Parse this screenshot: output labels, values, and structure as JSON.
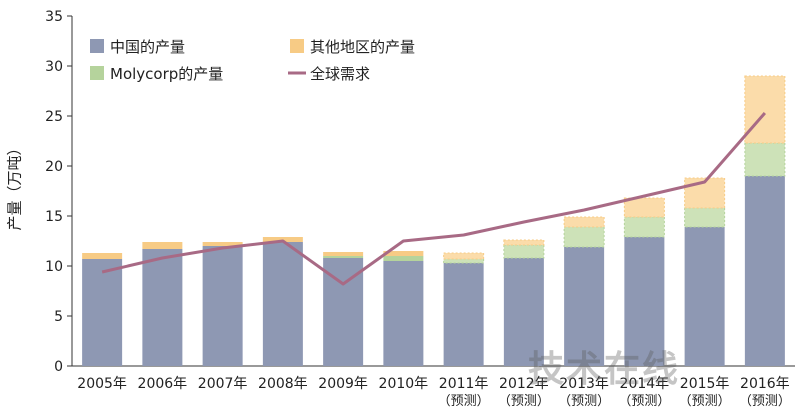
{
  "chart_data": {
    "type": "bar",
    "subtype": "stacked-bar-with-line",
    "title": "",
    "ylabel": "产量（万吨）",
    "xlabel": "",
    "ylim": [
      0,
      35
    ],
    "yticks": [
      "0",
      "5",
      "10",
      "15",
      "20",
      "25",
      "30",
      "35"
    ],
    "categories": [
      {
        "line1": "2005年",
        "line2": ""
      },
      {
        "line1": "2006年",
        "line2": ""
      },
      {
        "line1": "2007年",
        "line2": ""
      },
      {
        "line1": "2008年",
        "line2": ""
      },
      {
        "line1": "2009年",
        "line2": ""
      },
      {
        "line1": "2010年",
        "line2": ""
      },
      {
        "line1": "2011年",
        "line2": "（预测）"
      },
      {
        "line1": "2012年",
        "line2": "（预测）"
      },
      {
        "line1": "2013年",
        "line2": "（预测）"
      },
      {
        "line1": "2014年",
        "line2": "（预测）"
      },
      {
        "line1": "2015年",
        "line2": "（预测）"
      },
      {
        "line1": "2016年",
        "line2": "（预测）"
      }
    ],
    "forecast_from_index": 6,
    "series": [
      {
        "name": "中国的产量",
        "kind": "bar",
        "color": "#8e98b3",
        "forecast_color": "#8e98b3",
        "values": [
          10.7,
          11.7,
          12.0,
          12.4,
          10.8,
          10.5,
          10.3,
          10.8,
          11.9,
          12.9,
          13.9,
          19.0
        ]
      },
      {
        "name": "Molycorp的产量",
        "kind": "bar",
        "color": "#b5d39c",
        "forecast_color": "#cde2b8",
        "values": [
          0,
          0,
          0,
          0,
          0.2,
          0.5,
          0.4,
          1.3,
          2.0,
          2.0,
          1.9,
          3.3
        ]
      },
      {
        "name": "其他地区的产量",
        "kind": "bar",
        "color": "#f7cb85",
        "forecast_color": "#fbdcaa",
        "values": [
          0.6,
          0.7,
          0.4,
          0.5,
          0.4,
          0.5,
          0.6,
          0.5,
          1.0,
          1.9,
          3.0,
          6.7
        ]
      },
      {
        "name": "全球需求",
        "kind": "line",
        "color": "#a86a85",
        "values": [
          9.4,
          10.8,
          11.8,
          12.5,
          8.2,
          12.5,
          13.1,
          14.4,
          15.6,
          17.0,
          18.4,
          25.3
        ]
      }
    ],
    "legend": {
      "position": "top-left",
      "order": [
        0,
        2,
        1,
        3
      ]
    }
  },
  "watermark": "技术在线"
}
